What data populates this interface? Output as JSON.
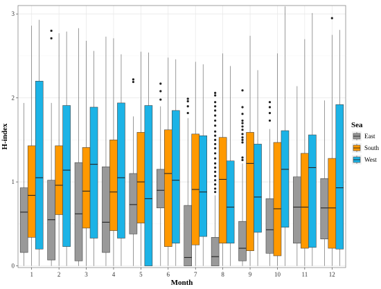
{
  "chart_data": {
    "type": "box",
    "xlabel": "Month",
    "ylabel": "H-index",
    "ylim": [
      -0.02,
      3.1
    ],
    "y_ticks": [
      0,
      1,
      2,
      3
    ],
    "categories": [
      "1",
      "2",
      "3",
      "4",
      "5",
      "6",
      "7",
      "8",
      "9",
      "10",
      "11",
      "12"
    ],
    "grid": true,
    "legend": {
      "title": "Sea",
      "position": "right"
    },
    "series": [
      {
        "name": "East",
        "color": "#999999",
        "boxes": [
          {
            "min": 0.0,
            "q1": 0.16,
            "median": 0.64,
            "q3": 0.93,
            "max": 1.94,
            "outliers": []
          },
          {
            "min": 0.0,
            "q1": 0.07,
            "median": 0.55,
            "q3": 1.02,
            "max": 1.94,
            "outliers": [
              2.8,
              2.71
            ]
          },
          {
            "min": 0.0,
            "q1": 0.06,
            "median": 0.62,
            "q3": 1.23,
            "max": 2.83,
            "outliers": []
          },
          {
            "min": 0.0,
            "q1": 0.16,
            "median": 0.52,
            "q3": 1.18,
            "max": 2.73,
            "outliers": []
          },
          {
            "min": 0.0,
            "q1": 0.38,
            "median": 0.73,
            "q3": 1.1,
            "max": 1.78,
            "outliers": [
              2.22,
              2.19
            ]
          },
          {
            "min": 0.0,
            "q1": 0.69,
            "median": 0.9,
            "q3": 1.15,
            "max": 1.9,
            "outliers": [
              2.17,
              2.08,
              1.98
            ]
          },
          {
            "min": 0.0,
            "q1": 0.0,
            "median": 0.1,
            "q3": 0.72,
            "max": 1.76,
            "outliers": [
              1.99,
              1.96,
              1.9,
              1.82
            ]
          },
          {
            "min": 0.0,
            "q1": 0.0,
            "median": 0.11,
            "q3": 0.34,
            "max": 0.84,
            "outliers": [
              2.06,
              2.03,
              1.95,
              1.9,
              1.85,
              1.79,
              1.73,
              1.67,
              1.6,
              1.55,
              1.5,
              1.45,
              1.4,
              1.34,
              1.28,
              1.22,
              1.17,
              1.12,
              1.07,
              1.02,
              0.97,
              0.92,
              0.88
            ]
          },
          {
            "min": 0.0,
            "q1": 0.06,
            "median": 0.21,
            "q3": 0.53,
            "max": 1.22,
            "outliers": [
              2.09,
              1.89,
              1.81,
              1.73,
              1.7,
              1.66,
              1.62,
              1.57,
              1.53,
              1.5,
              1.47,
              1.29,
              1.26
            ]
          },
          {
            "min": 0.0,
            "q1": 0.15,
            "median": 0.43,
            "q3": 0.8,
            "max": 1.63,
            "outliers": [
              1.95,
              1.89,
              1.82,
              1.73
            ]
          },
          {
            "min": 0.0,
            "q1": 0.27,
            "median": 0.7,
            "q3": 1.06,
            "max": 2.14,
            "outliers": []
          },
          {
            "min": 0.0,
            "q1": 0.32,
            "median": 0.69,
            "q3": 1.04,
            "max": 1.97,
            "outliers": []
          }
        ]
      },
      {
        "name": "South",
        "color": "#FF9900",
        "boxes": [
          {
            "min": 0.0,
            "q1": 0.34,
            "median": 0.84,
            "q3": 1.43,
            "max": 2.86,
            "outliers": []
          },
          {
            "min": 0.0,
            "q1": 0.61,
            "median": 0.96,
            "q3": 1.43,
            "max": 2.77,
            "outliers": []
          },
          {
            "min": 0.0,
            "q1": 0.45,
            "median": 0.89,
            "q3": 1.41,
            "max": 2.68,
            "outliers": []
          },
          {
            "min": 0.0,
            "q1": 0.42,
            "median": 0.88,
            "q3": 1.5,
            "max": 2.71,
            "outliers": []
          },
          {
            "min": 0.0,
            "q1": 0.51,
            "median": 1.0,
            "q3": 1.59,
            "max": 2.55,
            "outliers": []
          },
          {
            "min": 0.0,
            "q1": 0.23,
            "median": 1.1,
            "q3": 1.62,
            "max": 2.48,
            "outliers": []
          },
          {
            "min": 0.0,
            "q1": 0.25,
            "median": 0.91,
            "q3": 1.57,
            "max": 2.43,
            "outliers": []
          },
          {
            "min": 0.0,
            "q1": 0.27,
            "median": 1.03,
            "q3": 1.53,
            "max": 2.53,
            "outliers": []
          },
          {
            "min": 0.0,
            "q1": 0.18,
            "median": 1.22,
            "q3": 1.59,
            "max": 2.74,
            "outliers": []
          },
          {
            "min": 0.0,
            "q1": 0.12,
            "median": 0.68,
            "q3": 1.47,
            "max": 2.53,
            "outliers": []
          },
          {
            "min": 0.0,
            "q1": 0.21,
            "median": 0.7,
            "q3": 1.34,
            "max": 2.7,
            "outliers": []
          },
          {
            "min": 0.0,
            "q1": 0.21,
            "median": 0.69,
            "q3": 1.28,
            "max": 2.75,
            "outliers": [
              2.95
            ]
          }
        ]
      },
      {
        "name": "West",
        "color": "#1CB3E6",
        "boxes": [
          {
            "min": 0.0,
            "q1": 0.2,
            "median": 1.05,
            "q3": 2.2,
            "max": 2.93,
            "outliers": []
          },
          {
            "min": 0.0,
            "q1": 0.23,
            "median": 1.14,
            "q3": 1.91,
            "max": 2.79,
            "outliers": []
          },
          {
            "min": 0.0,
            "q1": 0.33,
            "median": 1.21,
            "q3": 1.89,
            "max": 2.56,
            "outliers": []
          },
          {
            "min": 0.0,
            "q1": 0.33,
            "median": 1.05,
            "q3": 1.94,
            "max": 2.52,
            "outliers": []
          },
          {
            "min": 0.0,
            "q1": 0.0,
            "median": 0.8,
            "q3": 1.91,
            "max": 2.54,
            "outliers": []
          },
          {
            "min": 0.0,
            "q1": 0.27,
            "median": 1.02,
            "q3": 1.85,
            "max": 2.46,
            "outliers": []
          },
          {
            "min": 0.0,
            "q1": 0.35,
            "median": 0.88,
            "q3": 1.55,
            "max": 2.4,
            "outliers": []
          },
          {
            "min": 0.0,
            "q1": 0.27,
            "median": 0.7,
            "q3": 1.25,
            "max": 2.38,
            "outliers": []
          },
          {
            "min": 0.0,
            "q1": 0.4,
            "median": 0.82,
            "q3": 1.45,
            "max": 2.33,
            "outliers": []
          },
          {
            "min": 0.0,
            "q1": 0.46,
            "median": 1.15,
            "q3": 1.61,
            "max": 3.09,
            "outliers": []
          },
          {
            "min": 0.0,
            "q1": 0.22,
            "median": 1.17,
            "q3": 1.56,
            "max": 3.01,
            "outliers": []
          },
          {
            "min": 0.0,
            "q1": 0.2,
            "median": 0.93,
            "q3": 1.92,
            "max": 2.81,
            "outliers": []
          }
        ]
      }
    ]
  }
}
